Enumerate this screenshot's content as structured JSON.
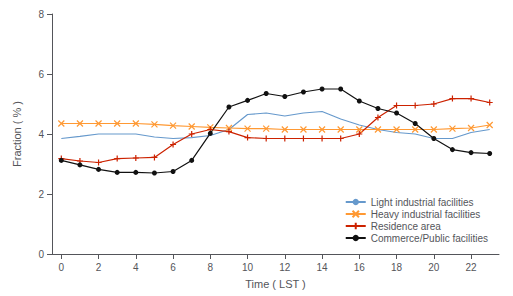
{
  "chart_data": {
    "type": "line",
    "xlabel": "Time ( LST )",
    "ylabel": "Fraction ( % )",
    "x": [
      0,
      1,
      2,
      3,
      4,
      5,
      6,
      7,
      8,
      9,
      10,
      11,
      12,
      13,
      14,
      15,
      16,
      17,
      18,
      19,
      20,
      21,
      22,
      23
    ],
    "series": [
      {
        "name": "Light industrial facilities",
        "color": "#6699cc",
        "marker": "none",
        "values": [
          3.85,
          3.92,
          4.0,
          4.0,
          4.0,
          3.9,
          3.85,
          3.88,
          3.95,
          4.15,
          4.65,
          4.7,
          4.6,
          4.7,
          4.75,
          4.5,
          4.3,
          4.15,
          4.05,
          4.0,
          3.85,
          3.85,
          4.05,
          4.15
        ]
      },
      {
        "name": "Heavy industrial facilities",
        "color": "#ff9933",
        "marker": "x",
        "values": [
          4.35,
          4.35,
          4.35,
          4.35,
          4.35,
          4.32,
          4.28,
          4.25,
          4.22,
          4.2,
          4.18,
          4.18,
          4.15,
          4.15,
          4.15,
          4.15,
          4.15,
          4.15,
          4.15,
          4.15,
          4.15,
          4.18,
          4.2,
          4.3
        ]
      },
      {
        "name": "Residence area",
        "color": "#cc2200",
        "marker": "+",
        "values": [
          3.18,
          3.1,
          3.05,
          3.18,
          3.2,
          3.22,
          3.65,
          4.0,
          4.15,
          4.08,
          3.88,
          3.85,
          3.85,
          3.85,
          3.85,
          3.85,
          4.0,
          4.55,
          4.95,
          4.95,
          5.0,
          5.18,
          5.18,
          5.05
        ]
      },
      {
        "name": "Commerce/Public facilities",
        "color": "#111111",
        "marker": "o",
        "values": [
          3.12,
          2.97,
          2.82,
          2.72,
          2.72,
          2.7,
          2.75,
          3.12,
          4.02,
          4.9,
          5.12,
          5.35,
          5.25,
          5.4,
          5.5,
          5.5,
          5.1,
          4.85,
          4.7,
          4.35,
          3.85,
          3.48,
          3.38,
          3.35
        ]
      }
    ],
    "xlim": [
      -0.5,
      23.5
    ],
    "xticks": [
      0,
      2,
      4,
      6,
      8,
      10,
      12,
      14,
      16,
      18,
      20,
      22
    ],
    "ylim": [
      0,
      8
    ],
    "yticks": [
      0,
      2,
      4,
      6,
      8
    ],
    "grid": false,
    "legend": "lower right"
  }
}
